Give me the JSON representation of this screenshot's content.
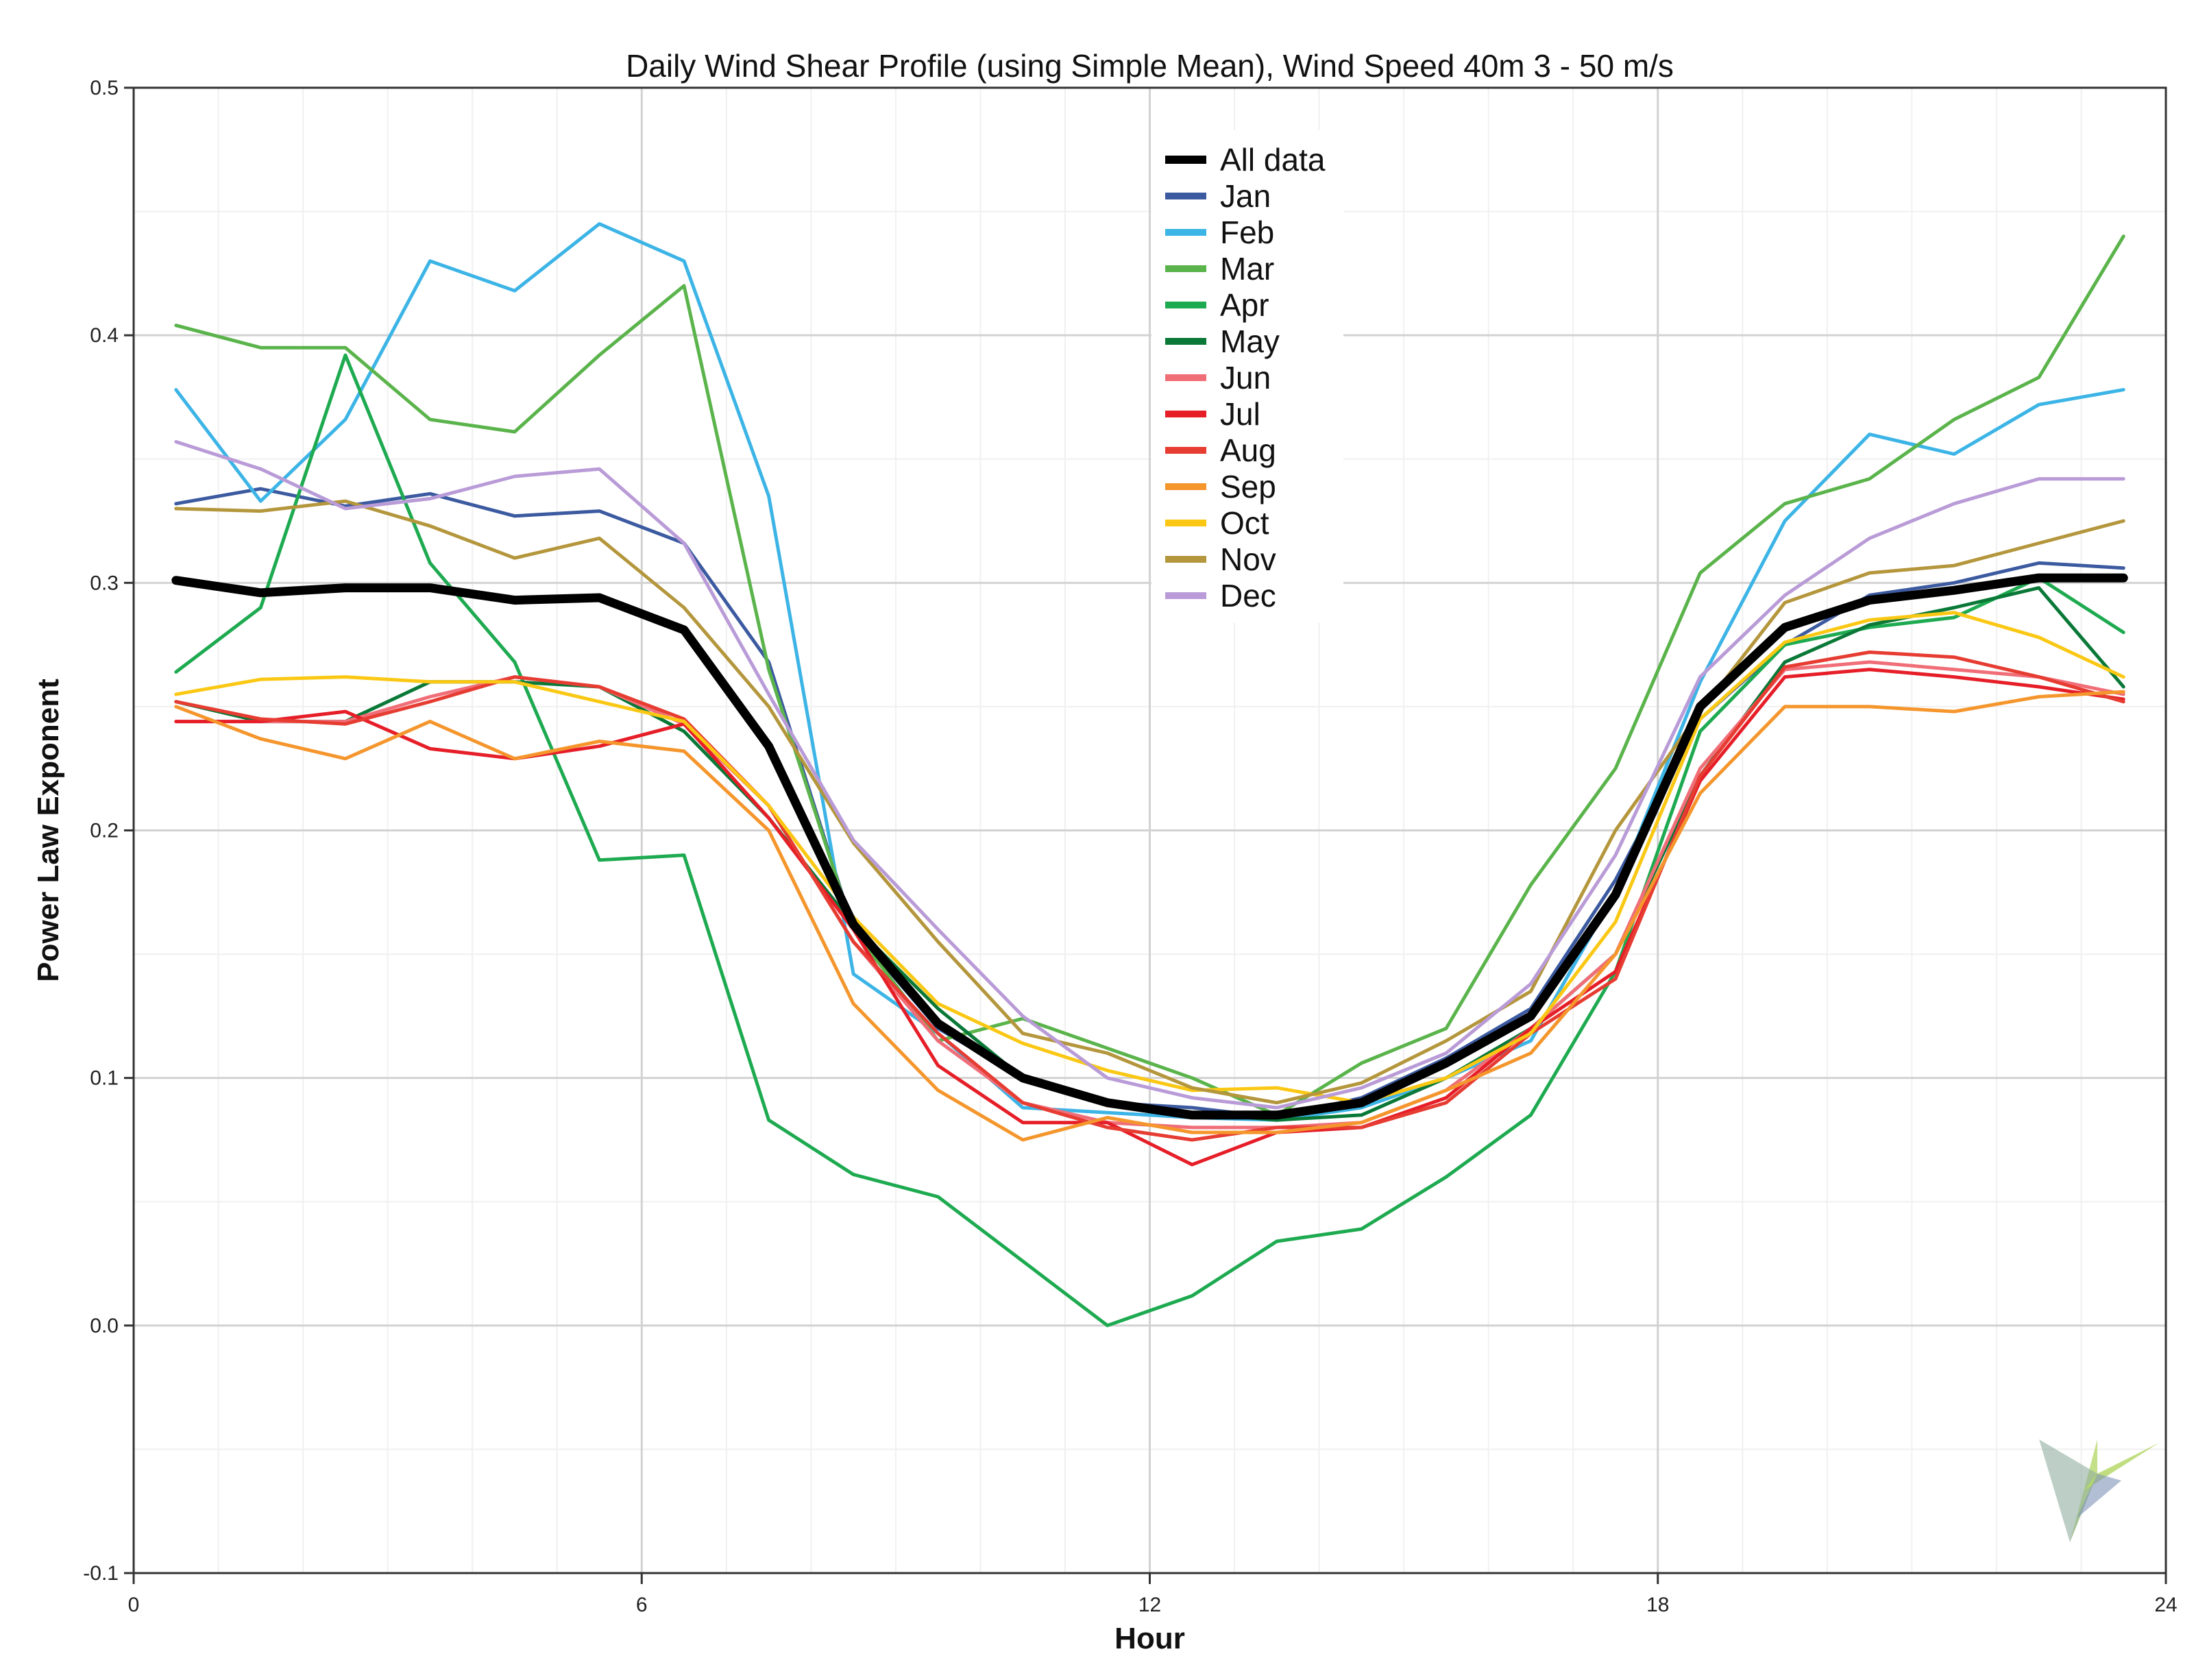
{
  "chart_data": {
    "type": "line",
    "title": "Daily Wind Shear Profile (using Simple Mean), Wind Speed 40m 3 - 50 m/s",
    "xlabel": "Hour",
    "ylabel": "Power Law Exponent",
    "xlim": [
      0,
      24
    ],
    "ylim": [
      -0.1,
      0.5
    ],
    "xticks": [
      0,
      6,
      12,
      18,
      24
    ],
    "xtick_labels": [
      "0",
      "6",
      "12",
      "18",
      "24"
    ],
    "yticks": [
      -0.1,
      0.0,
      0.1,
      0.2,
      0.3,
      0.4,
      0.5
    ],
    "ytick_labels": [
      "-0.1",
      "0.0",
      "0.1",
      "0.2",
      "0.3",
      "0.4",
      "0.5"
    ],
    "grid": true,
    "legend_position": "top-center",
    "x": [
      0.5,
      1.5,
      2.5,
      3.5,
      4.5,
      5.5,
      6.5,
      7.5,
      8.5,
      9.5,
      10.5,
      11.5,
      12.5,
      13.5,
      14.5,
      15.5,
      16.5,
      17.5,
      18.5,
      19.5,
      20.5,
      21.5,
      22.5,
      23.5
    ],
    "series": [
      {
        "name": "Jan",
        "color": "#3c5aa0",
        "values": [
          0.332,
          0.338,
          0.331,
          0.336,
          0.327,
          0.329,
          0.316,
          0.268,
          0.16,
          0.12,
          0.1,
          0.09,
          0.088,
          0.084,
          0.092,
          0.108,
          0.128,
          0.18,
          0.245,
          0.275,
          0.295,
          0.3,
          0.308,
          0.306
        ]
      },
      {
        "name": "Feb",
        "color": "#3cb4e6",
        "values": [
          0.378,
          0.333,
          0.366,
          0.43,
          0.418,
          0.445,
          0.43,
          0.335,
          0.142,
          0.118,
          0.088,
          0.086,
          0.084,
          0.083,
          0.088,
          0.1,
          0.115,
          0.175,
          0.26,
          0.325,
          0.36,
          0.352,
          0.372,
          0.378
        ]
      },
      {
        "name": "Mar",
        "color": "#5ab44b",
        "values": [
          0.404,
          0.395,
          0.395,
          0.366,
          0.361,
          0.392,
          0.42,
          0.265,
          0.16,
          0.115,
          0.124,
          0.112,
          0.1,
          0.085,
          0.106,
          0.12,
          0.178,
          0.225,
          0.304,
          0.332,
          0.342,
          0.366,
          0.383,
          0.44
        ]
      },
      {
        "name": "Apr",
        "color": "#1eaa50",
        "values": [
          0.264,
          0.29,
          0.392,
          0.308,
          0.268,
          0.188,
          0.19,
          0.083,
          0.061,
          0.052,
          0.026,
          0.0,
          0.012,
          0.034,
          0.039,
          0.06,
          0.085,
          0.143,
          0.24,
          0.275,
          0.282,
          0.286,
          0.302,
          0.28
        ]
      },
      {
        "name": "May",
        "color": "#0a7837",
        "values": [
          0.252,
          0.244,
          0.244,
          0.26,
          0.26,
          0.258,
          0.24,
          0.205,
          0.162,
          0.128,
          0.1,
          0.09,
          0.086,
          0.083,
          0.085,
          0.1,
          0.12,
          0.15,
          0.222,
          0.268,
          0.283,
          0.29,
          0.298,
          0.258
        ]
      },
      {
        "name": "Jun",
        "color": "#f06e78",
        "values": [
          0.244,
          0.244,
          0.244,
          0.254,
          0.262,
          0.258,
          0.243,
          0.21,
          0.155,
          0.115,
          0.09,
          0.082,
          0.08,
          0.08,
          0.082,
          0.095,
          0.12,
          0.15,
          0.225,
          0.265,
          0.268,
          0.265,
          0.262,
          0.255
        ]
      },
      {
        "name": "Jul",
        "color": "#e61e28",
        "values": [
          0.244,
          0.244,
          0.248,
          0.233,
          0.229,
          0.234,
          0.243,
          0.205,
          0.16,
          0.105,
          0.082,
          0.082,
          0.065,
          0.078,
          0.08,
          0.092,
          0.12,
          0.143,
          0.22,
          0.262,
          0.265,
          0.262,
          0.258,
          0.253
        ]
      },
      {
        "name": "Aug",
        "color": "#e63c32",
        "values": [
          0.252,
          0.245,
          0.243,
          0.252,
          0.262,
          0.258,
          0.245,
          0.21,
          0.155,
          0.118,
          0.09,
          0.08,
          0.075,
          0.08,
          0.08,
          0.09,
          0.118,
          0.14,
          0.222,
          0.266,
          0.272,
          0.27,
          0.262,
          0.252
        ]
      },
      {
        "name": "Sep",
        "color": "#f5962d",
        "values": [
          0.25,
          0.237,
          0.229,
          0.244,
          0.229,
          0.236,
          0.232,
          0.2,
          0.13,
          0.095,
          0.075,
          0.084,
          0.078,
          0.078,
          0.082,
          0.095,
          0.11,
          0.15,
          0.215,
          0.25,
          0.25,
          0.248,
          0.254,
          0.256
        ]
      },
      {
        "name": "Oct",
        "color": "#fac814",
        "values": [
          0.255,
          0.261,
          0.262,
          0.26,
          0.26,
          0.252,
          0.244,
          0.21,
          0.165,
          0.13,
          0.114,
          0.103,
          0.095,
          0.096,
          0.09,
          0.1,
          0.118,
          0.163,
          0.245,
          0.276,
          0.285,
          0.288,
          0.278,
          0.262
        ]
      },
      {
        "name": "Nov",
        "color": "#b4963c",
        "values": [
          0.33,
          0.329,
          0.333,
          0.323,
          0.31,
          0.318,
          0.29,
          0.25,
          0.195,
          0.155,
          0.118,
          0.11,
          0.096,
          0.09,
          0.098,
          0.115,
          0.135,
          0.2,
          0.248,
          0.292,
          0.304,
          0.307,
          0.316,
          0.325
        ]
      },
      {
        "name": "Dec",
        "color": "#b99bd7",
        "values": [
          0.357,
          0.346,
          0.33,
          0.334,
          0.343,
          0.346,
          0.316,
          0.255,
          0.196,
          0.16,
          0.125,
          0.1,
          0.092,
          0.088,
          0.096,
          0.11,
          0.138,
          0.19,
          0.262,
          0.295,
          0.318,
          0.332,
          0.342,
          0.342
        ]
      },
      {
        "name": "All data",
        "color": "#000000",
        "values": [
          0.301,
          0.296,
          0.298,
          0.298,
          0.293,
          0.294,
          0.281,
          0.234,
          0.162,
          0.122,
          0.1,
          0.09,
          0.085,
          0.085,
          0.09,
          0.106,
          0.125,
          0.174,
          0.25,
          0.282,
          0.293,
          0.297,
          0.302,
          0.302
        ]
      }
    ],
    "legend": [
      {
        "label": "All data",
        "color": "#000000"
      },
      {
        "label": "Jan",
        "color": "#3c5aa0"
      },
      {
        "label": "Feb",
        "color": "#3cb4e6"
      },
      {
        "label": "Mar",
        "color": "#5ab44b"
      },
      {
        "label": "Apr",
        "color": "#1eaa50"
      },
      {
        "label": "May",
        "color": "#0a7837"
      },
      {
        "label": "Jun",
        "color": "#f06e78"
      },
      {
        "label": "Jul",
        "color": "#e61e28"
      },
      {
        "label": "Aug",
        "color": "#e63c32"
      },
      {
        "label": "Sep",
        "color": "#f5962d"
      },
      {
        "label": "Oct",
        "color": "#fac814"
      },
      {
        "label": "Nov",
        "color": "#b4963c"
      },
      {
        "label": "Dec",
        "color": "#b99bd7"
      }
    ]
  }
}
